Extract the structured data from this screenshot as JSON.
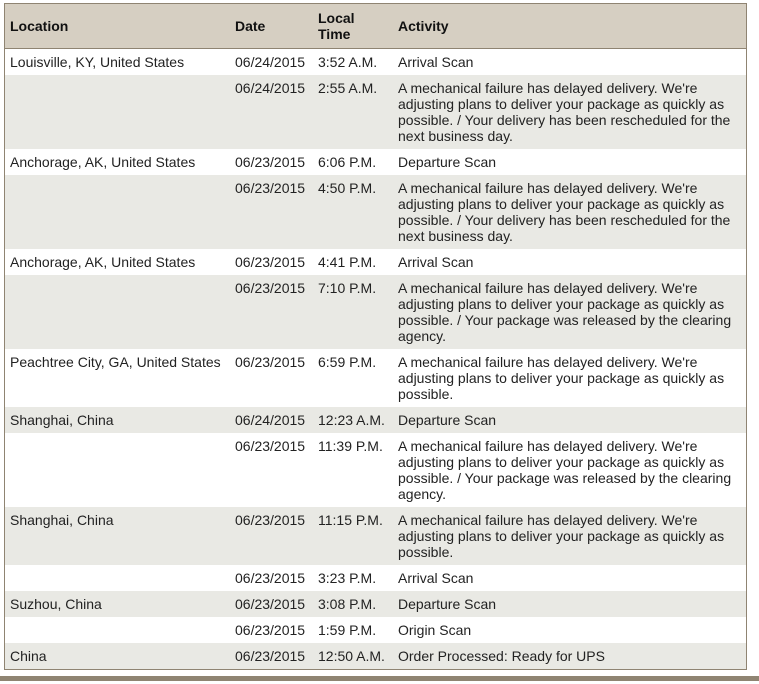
{
  "headers": {
    "location": "Location",
    "date": "Date",
    "time": "Local Time",
    "activity": "Activity"
  },
  "rows": [
    {
      "location": "Louisville, KY, United States",
      "date": "06/24/2015",
      "time": "3:52 A.M.",
      "activity": "Arrival Scan"
    },
    {
      "location": "",
      "date": "06/24/2015",
      "time": "2:55 A.M.",
      "activity": "A mechanical failure has delayed delivery. We're adjusting plans to deliver your package as quickly as possible. / Your delivery has been rescheduled for the next business day."
    },
    {
      "location": "Anchorage, AK, United States",
      "date": "06/23/2015",
      "time": "6:06 P.M.",
      "activity": "Departure Scan"
    },
    {
      "location": "",
      "date": "06/23/2015",
      "time": "4:50 P.M.",
      "activity": "A mechanical failure has delayed delivery. We're adjusting plans to deliver your package as quickly as possible. / Your delivery has been rescheduled for the next business day."
    },
    {
      "location": "Anchorage, AK, United States",
      "date": "06/23/2015",
      "time": "4:41 P.M.",
      "activity": "Arrival Scan"
    },
    {
      "location": "",
      "date": "06/23/2015",
      "time": "7:10 P.M.",
      "activity": "A mechanical failure has delayed delivery. We're adjusting plans to deliver your package as quickly as possible. / Your package was released by the clearing agency."
    },
    {
      "location": "Peachtree City, GA, United States",
      "date": "06/23/2015",
      "time": "6:59 P.M.",
      "activity": "A mechanical failure has delayed delivery. We're adjusting plans to deliver your package as quickly as possible."
    },
    {
      "location": "Shanghai, China",
      "date": "06/24/2015",
      "time": "12:23 A.M.",
      "activity": "Departure Scan"
    },
    {
      "location": "",
      "date": "06/23/2015",
      "time": "11:39 P.M.",
      "activity": "A mechanical failure has delayed delivery. We're adjusting plans to deliver your package as quickly as possible. / Your package was released by the clearing agency."
    },
    {
      "location": "Shanghai, China",
      "date": "06/23/2015",
      "time": "11:15 P.M.",
      "activity": "A mechanical failure has delayed delivery. We're adjusting plans to deliver your package as quickly as possible."
    },
    {
      "location": "",
      "date": "06/23/2015",
      "time": "3:23 P.M.",
      "activity": "Arrival Scan"
    },
    {
      "location": "Suzhou, China",
      "date": "06/23/2015",
      "time": "3:08 P.M.",
      "activity": "Departure Scan"
    },
    {
      "location": "",
      "date": "06/23/2015",
      "time": "1:59 P.M.",
      "activity": "Origin Scan"
    },
    {
      "location": "China",
      "date": "06/23/2015",
      "time": "12:50 A.M.",
      "activity": "Order Processed: Ready for UPS"
    }
  ]
}
